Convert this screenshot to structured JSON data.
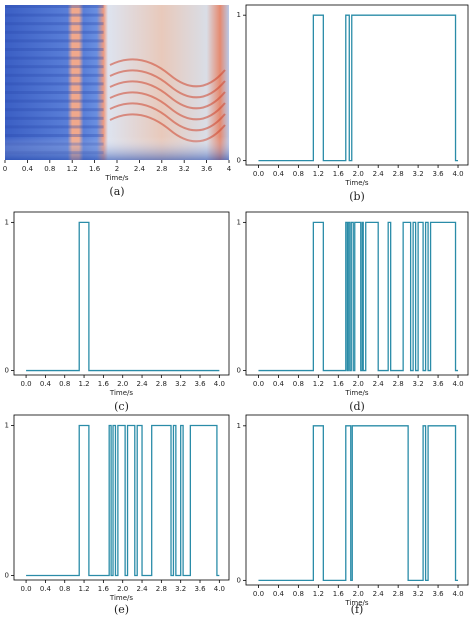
{
  "chart_data": [
    {
      "type": "heatmap",
      "xlabel": "Time/s",
      "caption": "(a)",
      "xlim": [
        0,
        4
      ],
      "xticks": [
        0,
        0.4,
        0.8,
        1.2,
        1.6,
        2,
        2.4,
        2.8,
        3.2,
        3.6,
        4
      ]
    },
    {
      "type": "line",
      "xlabel": "Time/s",
      "caption": "(b)",
      "color": "#2a8ca8",
      "xlim": [
        -0.25,
        4.2
      ],
      "ylim": [
        -0.03,
        1.07
      ],
      "xticks": [
        {
          "value": 0,
          "label": "0.0"
        },
        0.4,
        0.8,
        1.2,
        1.6,
        {
          "value": 2,
          "label": "2.0"
        },
        2.4,
        2.8,
        3.2,
        3.6,
        {
          "value": 4,
          "label": "4.0"
        }
      ],
      "yticks": [
        0,
        1
      ],
      "x": [
        0,
        1.1,
        1.1,
        1.3,
        1.3,
        1.75,
        1.75,
        1.82,
        1.82,
        1.87,
        1.87,
        3.95,
        3.95,
        4.0
      ],
      "values": [
        0,
        0,
        1,
        1,
        0,
        0,
        1,
        1,
        0,
        0,
        1,
        1,
        0,
        0
      ]
    },
    {
      "type": "line",
      "xlabel": "Time/s",
      "caption": "(c)",
      "color": "#2a8ca8",
      "xlim": [
        -0.25,
        4.2
      ],
      "ylim": [
        -0.03,
        1.07
      ],
      "xticks": [
        {
          "value": 0,
          "label": "0.0"
        },
        0.4,
        0.8,
        1.2,
        1.6,
        {
          "value": 2,
          "label": "2.0"
        },
        2.4,
        2.8,
        3.2,
        3.6,
        {
          "value": 4,
          "label": "4.0"
        }
      ],
      "yticks": [
        0,
        1
      ],
      "x": [
        0,
        1.1,
        1.1,
        1.3,
        1.3,
        4.0
      ],
      "values": [
        0,
        0,
        1,
        1,
        0,
        0
      ]
    },
    {
      "type": "line",
      "xlabel": "Time/s",
      "caption": "(d)",
      "color": "#2a8ca8",
      "xlim": [
        -0.25,
        4.2
      ],
      "ylim": [
        -0.03,
        1.07
      ],
      "xticks": [
        {
          "value": 0,
          "label": "0.0"
        },
        0.4,
        0.8,
        1.2,
        1.6,
        {
          "value": 2,
          "label": "2.0"
        },
        2.4,
        2.8,
        3.2,
        3.6,
        {
          "value": 4,
          "label": "4.0"
        }
      ],
      "yticks": [
        0,
        1
      ],
      "x": [
        0,
        1.1,
        1.1,
        1.3,
        1.3,
        1.75,
        1.75,
        1.78,
        1.78,
        1.8,
        1.8,
        1.83,
        1.83,
        1.86,
        1.86,
        1.9,
        1.9,
        1.93,
        1.93,
        2.05,
        2.05,
        2.08,
        2.08,
        2.1,
        2.1,
        2.15,
        2.15,
        2.4,
        2.4,
        2.6,
        2.6,
        2.65,
        2.65,
        2.9,
        2.9,
        3.05,
        3.05,
        3.1,
        3.1,
        3.15,
        3.15,
        3.2,
        3.2,
        3.3,
        3.3,
        3.35,
        3.35,
        3.4,
        3.4,
        3.45,
        3.45,
        3.95,
        3.95,
        4.0
      ],
      "values": [
        0,
        0,
        1,
        1,
        0,
        0,
        1,
        1,
        0,
        0,
        1,
        1,
        0,
        0,
        1,
        1,
        0,
        0,
        1,
        1,
        0,
        0,
        1,
        1,
        0,
        0,
        1,
        1,
        0,
        0,
        1,
        1,
        0,
        0,
        1,
        1,
        0,
        0,
        1,
        1,
        0,
        0,
        1,
        1,
        0,
        0,
        1,
        1,
        0,
        0,
        1,
        1,
        0,
        0
      ]
    },
    {
      "type": "line",
      "xlabel": "Time/s",
      "caption": "(e)",
      "color": "#2a8ca8",
      "xlim": [
        -0.25,
        4.2
      ],
      "ylim": [
        -0.03,
        1.07
      ],
      "xticks": [
        {
          "value": 0,
          "label": "0.0"
        },
        0.4,
        0.8,
        1.2,
        1.6,
        {
          "value": 2,
          "label": "2.0"
        },
        2.4,
        2.8,
        3.2,
        3.6,
        {
          "value": 4,
          "label": "4.0"
        }
      ],
      "yticks": [
        0,
        1
      ],
      "x": [
        0,
        1.1,
        1.1,
        1.3,
        1.3,
        1.72,
        1.72,
        1.76,
        1.76,
        1.8,
        1.8,
        1.85,
        1.85,
        1.9,
        1.9,
        2.05,
        2.05,
        2.1,
        2.1,
        2.25,
        2.25,
        2.3,
        2.3,
        2.4,
        2.4,
        2.6,
        2.6,
        3.0,
        3.0,
        3.05,
        3.05,
        3.1,
        3.1,
        3.2,
        3.2,
        3.25,
        3.25,
        3.4,
        3.4,
        3.95,
        3.95,
        4.0
      ],
      "values": [
        0,
        0,
        1,
        1,
        0,
        0,
        1,
        1,
        0,
        0,
        1,
        1,
        0,
        0,
        1,
        1,
        0,
        0,
        1,
        1,
        0,
        0,
        1,
        1,
        0,
        0,
        1,
        1,
        0,
        0,
        1,
        1,
        0,
        0,
        1,
        1,
        0,
        0,
        1,
        1,
        0,
        0
      ]
    },
    {
      "type": "line",
      "xlabel": "Time/s",
      "caption": "(f)",
      "color": "#2a8ca8",
      "xlim": [
        -0.25,
        4.2
      ],
      "ylim": [
        -0.03,
        1.07
      ],
      "xticks": [
        {
          "value": 0,
          "label": "0.0"
        },
        0.4,
        0.8,
        1.2,
        1.6,
        {
          "value": 2,
          "label": "2.0"
        },
        2.4,
        2.8,
        3.2,
        3.6,
        {
          "value": 4,
          "label": "4.0"
        }
      ],
      "yticks": [
        0,
        1
      ],
      "x": [
        0,
        1.1,
        1.1,
        1.3,
        1.3,
        1.75,
        1.75,
        1.85,
        1.85,
        1.88,
        1.88,
        3.0,
        3.0,
        3.3,
        3.3,
        3.35,
        3.35,
        3.4,
        3.4,
        3.95,
        3.95,
        4.0
      ],
      "values": [
        0,
        0,
        1,
        1,
        0,
        0,
        1,
        1,
        0,
        0,
        1,
        1,
        0,
        0,
        1,
        1,
        0,
        0,
        1,
        1,
        0,
        0
      ]
    }
  ]
}
